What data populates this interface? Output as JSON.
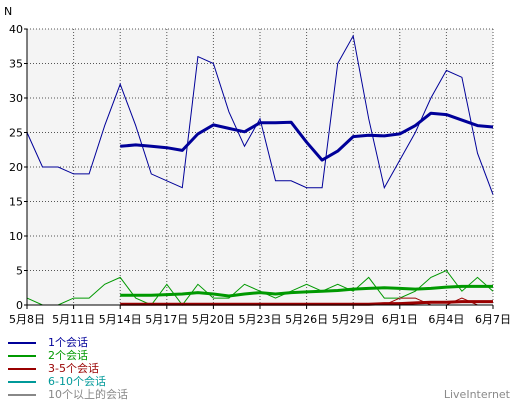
{
  "chart_data": {
    "type": "line",
    "ylabel": "N",
    "ylim": [
      0,
      40
    ],
    "yticks": [
      0,
      5,
      10,
      15,
      20,
      25,
      30,
      35,
      40
    ],
    "n_days": 31,
    "xtick_labels": [
      "5月8日",
      "5月11日",
      "5月14日",
      "5月17日",
      "5月20日",
      "5月23日",
      "5月26日",
      "5月29日",
      "6月1日",
      "6月4日",
      "6月7日"
    ],
    "xtick_indices": [
      0,
      3,
      6,
      9,
      12,
      15,
      18,
      21,
      24,
      27,
      30
    ],
    "grid": true,
    "series": [
      {
        "name": "1个会话",
        "color": "#000099",
        "daily": [
          25,
          20,
          20,
          19,
          19,
          26,
          32,
          26,
          19,
          18,
          17,
          36,
          35,
          28,
          23,
          27,
          18,
          18,
          17,
          17,
          35,
          39,
          27,
          17,
          21,
          25,
          30,
          34,
          33,
          22,
          16
        ],
        "avg_start": 6,
        "avg": [
          23,
          23.2,
          23,
          22.8,
          22.4,
          24.8,
          26.1,
          25.6,
          25.1,
          26.4,
          26.4,
          26.5,
          23.6,
          21,
          22.3,
          24.4,
          24.6,
          24.5,
          24.8,
          26,
          27.8,
          27.6,
          26.8,
          26,
          25.8
        ]
      },
      {
        "name": "2个会话",
        "color": "#009900",
        "daily": [
          1,
          0,
          0,
          1,
          1,
          3,
          4,
          1,
          0,
          3,
          0,
          3,
          1,
          1,
          3,
          2,
          1,
          2,
          3,
          2,
          3,
          2,
          4,
          1,
          1,
          2,
          4,
          5,
          2,
          4,
          2
        ],
        "avg_start": 6,
        "avg": [
          1.4,
          1.4,
          1.4,
          1.5,
          1.6,
          1.8,
          1.6,
          1.3,
          1.6,
          1.8,
          1.6,
          1.8,
          1.9,
          2,
          2.1,
          2.3,
          2.4,
          2.5,
          2.4,
          2.3,
          2.4,
          2.6,
          2.7,
          2.7,
          2.7
        ]
      },
      {
        "name": "3-5个会话",
        "color": "#990000",
        "daily": [
          0,
          0,
          0,
          0,
          0,
          0,
          0,
          0,
          0,
          0,
          0,
          0,
          0,
          0,
          0,
          0,
          0,
          0,
          0,
          0,
          0,
          0,
          0,
          0,
          1,
          1,
          0,
          0,
          1,
          0,
          0
        ],
        "avg_start": 6,
        "avg": [
          0.1,
          0.1,
          0.1,
          0.1,
          0.1,
          0.1,
          0.1,
          0.1,
          0.1,
          0.1,
          0.1,
          0.1,
          0.1,
          0.1,
          0.1,
          0.1,
          0.1,
          0.2,
          0.2,
          0.3,
          0.4,
          0.4,
          0.5,
          0.5,
          0.5
        ]
      },
      {
        "name": "6-10个会话",
        "color": "#009999",
        "daily": [
          0,
          0,
          0,
          0,
          0,
          0,
          0,
          0,
          0,
          0,
          0,
          0,
          0,
          0,
          0,
          0,
          0,
          0,
          0,
          0,
          0,
          0,
          0,
          0,
          0,
          0,
          0,
          0,
          0,
          0,
          0
        ],
        "avg_start": 6,
        "avg": []
      },
      {
        "name": "10个以上的会话",
        "color": "#888888",
        "daily": [
          0,
          0,
          0,
          0,
          0,
          0,
          0,
          0,
          0,
          0,
          0,
          0,
          0,
          0,
          0,
          0,
          0,
          0,
          0,
          0,
          0,
          0,
          0,
          0,
          0,
          0,
          0,
          0,
          0,
          0,
          0
        ],
        "avg_start": 6,
        "avg": []
      }
    ]
  },
  "brand": "LiveInternet"
}
